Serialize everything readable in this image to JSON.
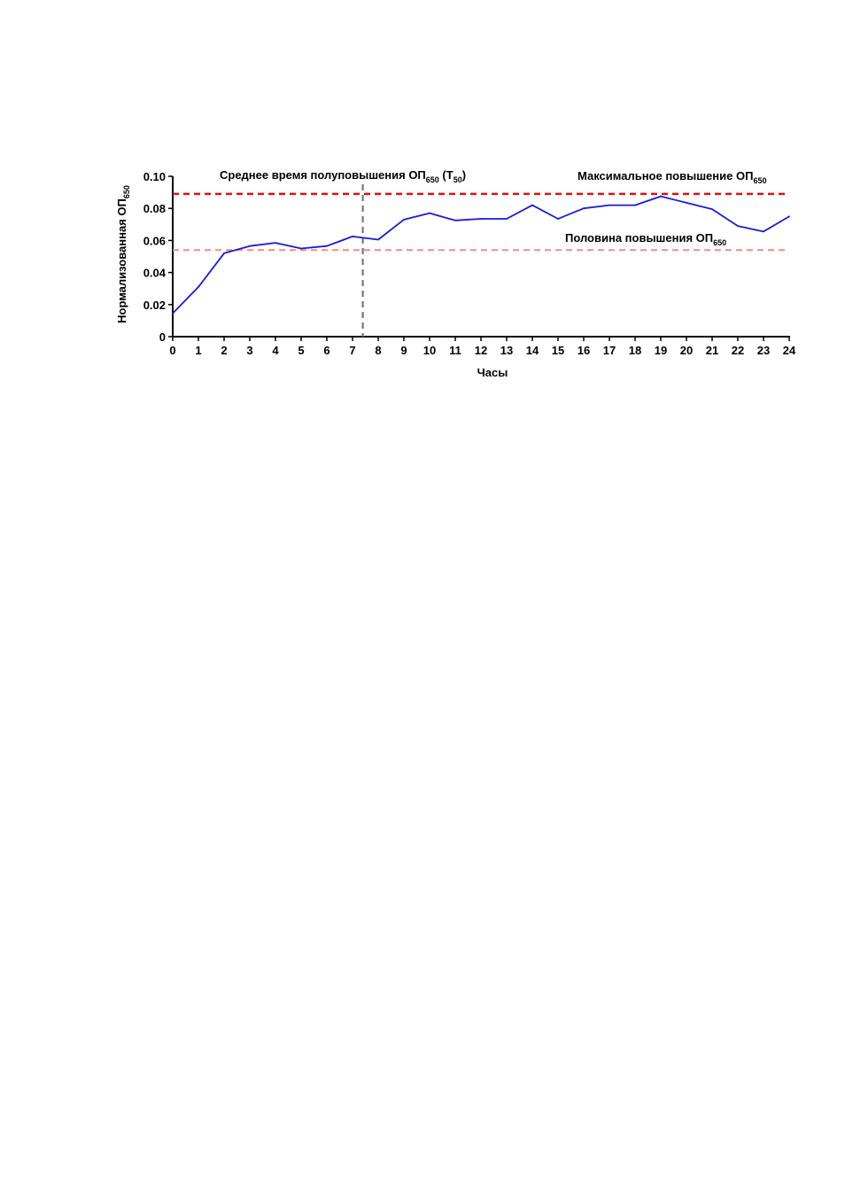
{
  "chart_data": {
    "type": "line",
    "xlabel": "Часы",
    "ylabel": {
      "text": "Нормализованная ОП",
      "sub": "650"
    },
    "xlim": [
      0,
      24
    ],
    "ylim": [
      0,
      0.1
    ],
    "x_ticks": [
      0,
      1,
      2,
      3,
      4,
      5,
      6,
      7,
      8,
      9,
      10,
      11,
      12,
      13,
      14,
      15,
      16,
      17,
      18,
      19,
      20,
      21,
      22,
      23,
      24
    ],
    "y_ticks": [
      "0",
      "0.02",
      "0.04",
      "0.06",
      "0.08",
      "0.10"
    ],
    "series": [
      {
        "color": "#1a1adc",
        "x": [
          0,
          1,
          2,
          3,
          4,
          5,
          6,
          7,
          8,
          9,
          10,
          11,
          12,
          13,
          14,
          15,
          16,
          17,
          18,
          19,
          20,
          21,
          22,
          23,
          24
        ],
        "values": [
          0.0145,
          0.031,
          0.052,
          0.0565,
          0.0585,
          0.055,
          0.0565,
          0.0625,
          0.0605,
          0.073,
          0.077,
          0.0725,
          0.0735,
          0.0735,
          0.082,
          0.0735,
          0.08,
          0.082,
          0.082,
          0.0875,
          0.0835,
          0.0795,
          0.069,
          0.0655,
          0.075
        ]
      }
    ],
    "reference_lines": [
      {
        "kind": "horizontal",
        "value": 0.089,
        "color": "#dd1111",
        "style": "dashed"
      },
      {
        "kind": "horizontal",
        "value": 0.054,
        "color": "#f08a8a",
        "style": "dashed"
      },
      {
        "kind": "vertical",
        "value": 7.4,
        "color": "#777777",
        "style": "dashed"
      }
    ],
    "annotations": [
      {
        "text": "Среднее время полуповышения ОП",
        "sub": "650",
        "tail": " (T",
        "tail_sub": "50",
        "end": ")"
      },
      {
        "text": "Максимальное повышение ОП",
        "sub": "650"
      },
      {
        "text": "Половина повышения ОП",
        "sub": "650"
      }
    ],
    "grid": false,
    "legend": "none"
  }
}
